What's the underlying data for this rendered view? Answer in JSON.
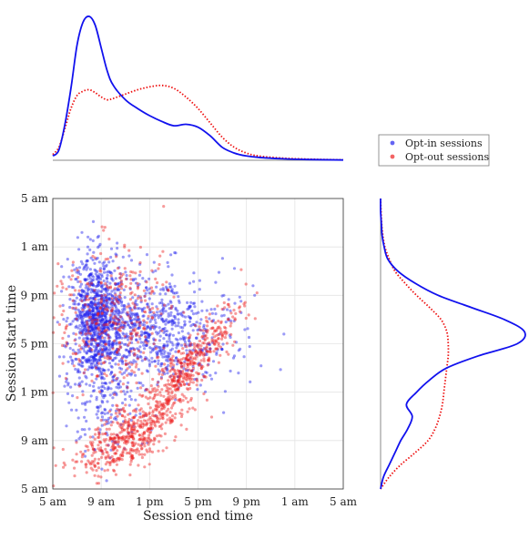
{
  "chart_data": {
    "type": "scatter",
    "title": "",
    "xlabel": "Session end time",
    "ylabel": "Session start time",
    "x_ticks": [
      "5 am",
      "9 am",
      "1 pm",
      "5 pm",
      "9 pm",
      "1 am",
      "5 am"
    ],
    "y_ticks": [
      "5 am",
      "9 am",
      "1 pm",
      "5 pm",
      "9 pm",
      "1 am",
      "5 am"
    ],
    "xlim_hours": [
      5,
      29
    ],
    "ylim_hours": [
      5,
      29
    ],
    "grid": true,
    "legend": {
      "placement": "top-right, outside axes",
      "entries": [
        {
          "label": "Opt-in sessions",
          "color": "#2222ee"
        },
        {
          "label": "Opt-out sessions",
          "color": "#ee2222"
        }
      ]
    },
    "series": [
      {
        "name": "Opt-in sessions",
        "color": "#2222ee",
        "clusters": [
          {
            "x_center": 8.6,
            "y_center": 19.0,
            "x_spread": 1.1,
            "y_spread": 2.6,
            "count": 900
          },
          {
            "x_center": 13.5,
            "y_center": 18.0,
            "x_spread": 3.3,
            "y_spread": 2.3,
            "count": 800
          },
          {
            "x_center": 9.5,
            "y_center": 12.0,
            "x_spread": 1.8,
            "y_spread": 2.2,
            "count": 160
          }
        ]
      },
      {
        "name": "Opt-out sessions",
        "color": "#ee2222",
        "clusters": [
          {
            "x_center": 11.5,
            "y_center": 9.5,
            "x_spread": 2.4,
            "y_spread": 1.5,
            "count": 520
          },
          {
            "x_center": 16.5,
            "y_center": 15.5,
            "x_spread": 1.9,
            "y_spread": 1.9,
            "count": 420
          },
          {
            "x_center": 10.0,
            "y_center": 19.0,
            "x_spread": 2.5,
            "y_spread": 3.0,
            "count": 380
          }
        ]
      }
    ],
    "marginal_x_density": {
      "x_hours": [
        5,
        5.5,
        6,
        6.5,
        7,
        7.5,
        8,
        8.5,
        9,
        9.5,
        10,
        11,
        12,
        13,
        14,
        15,
        16,
        17,
        18,
        19,
        20,
        21,
        22,
        24,
        26,
        29
      ],
      "opt_in": [
        0.03,
        0.07,
        0.25,
        0.5,
        0.8,
        0.96,
        1.0,
        0.94,
        0.78,
        0.62,
        0.52,
        0.42,
        0.36,
        0.31,
        0.27,
        0.24,
        0.25,
        0.23,
        0.17,
        0.09,
        0.05,
        0.03,
        0.02,
        0.01,
        0.005,
        0.002
      ],
      "opt_out": [
        0.04,
        0.09,
        0.22,
        0.36,
        0.45,
        0.48,
        0.49,
        0.47,
        0.44,
        0.42,
        0.43,
        0.46,
        0.49,
        0.51,
        0.52,
        0.5,
        0.44,
        0.36,
        0.26,
        0.16,
        0.09,
        0.05,
        0.03,
        0.015,
        0.008,
        0.003
      ]
    },
    "marginal_y_density": {
      "y_hours": [
        5,
        6,
        7,
        8,
        9,
        10,
        11,
        12,
        13,
        14,
        15,
        16,
        17,
        18,
        19,
        20,
        21,
        22,
        23,
        24,
        25,
        26,
        27,
        28,
        29
      ],
      "opt_in": [
        0.0,
        0.02,
        0.06,
        0.1,
        0.14,
        0.19,
        0.22,
        0.18,
        0.25,
        0.34,
        0.46,
        0.68,
        0.95,
        1.0,
        0.86,
        0.63,
        0.4,
        0.24,
        0.12,
        0.05,
        0.025,
        0.01,
        0.005,
        0.0,
        0.0
      ],
      "opt_out": [
        0.0,
        0.06,
        0.14,
        0.24,
        0.33,
        0.38,
        0.41,
        0.43,
        0.44,
        0.45,
        0.46,
        0.47,
        0.47,
        0.46,
        0.42,
        0.34,
        0.25,
        0.17,
        0.1,
        0.06,
        0.03,
        0.015,
        0.007,
        0.003,
        0.0
      ]
    }
  }
}
